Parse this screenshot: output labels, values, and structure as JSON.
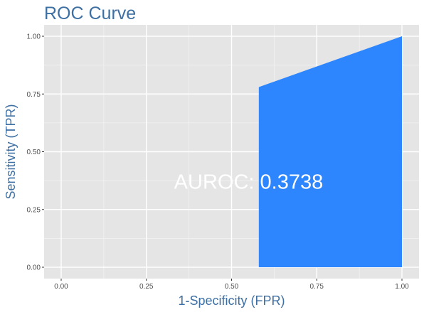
{
  "chart_data": {
    "type": "area",
    "title": "ROC Curve",
    "xlabel": "1-Specificity (FPR)",
    "ylabel": "Sensitivity (TPR)",
    "xlim": [
      0,
      1
    ],
    "ylim": [
      0,
      1
    ],
    "x_ticks": [
      "0.00",
      "0.25",
      "0.50",
      "0.75",
      "1.00"
    ],
    "y_ticks": [
      "0.00",
      "0.25",
      "0.50",
      "0.75",
      "1.00"
    ],
    "grid": true,
    "fill_color": "#2e86ff",
    "panel_background": "#e5e5e5",
    "series": [
      {
        "x": [
          0.58,
          0.58,
          1.0,
          1.0
        ],
        "y": [
          0.0,
          0.78,
          1.0,
          0.0
        ]
      }
    ],
    "annotation": {
      "text": "AUROC: 0.3738",
      "x": 0.55,
      "y": 0.34
    }
  }
}
